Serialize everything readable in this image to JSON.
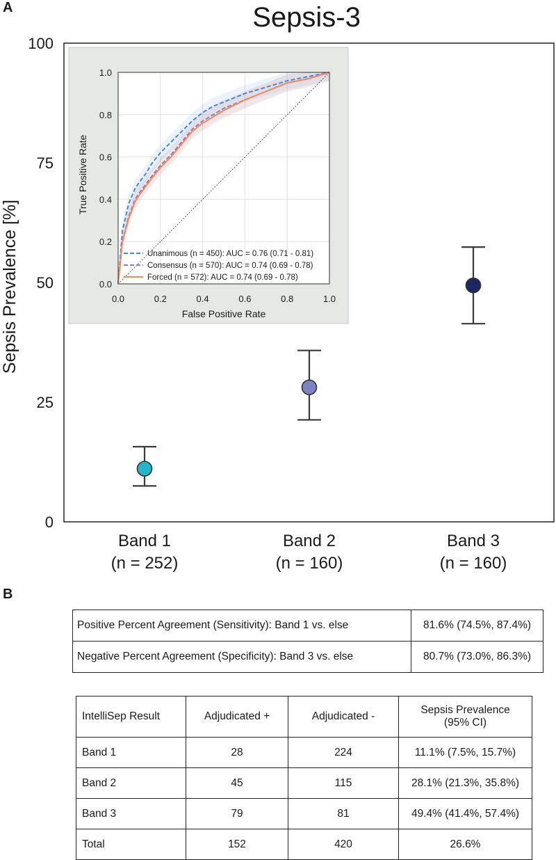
{
  "panel_labels": {
    "a": "A",
    "b": "B"
  },
  "chart_data": [
    {
      "type": "scatter",
      "title": "Sepsis-3",
      "xlabel": "",
      "ylabel": "Sepsis Prevalence [%]",
      "ylim": [
        0,
        100
      ],
      "yticks": [
        0,
        25,
        50,
        75,
        100
      ],
      "categories": [
        {
          "name": "Band 1",
          "n_label": "(n = 252)"
        },
        {
          "name": "Band 2",
          "n_label": "(n = 160)"
        },
        {
          "name": "Band 3",
          "n_label": "(n = 160)"
        }
      ],
      "values": [
        11.1,
        28.1,
        49.4
      ],
      "ci_low": [
        7.5,
        21.3,
        41.4
      ],
      "ci_high": [
        15.7,
        35.8,
        57.4
      ],
      "colors": [
        "#26b5c9",
        "#7b83c3",
        "#1b2663"
      ]
    },
    {
      "type": "line",
      "title": "",
      "xlabel": "False Positive Rate",
      "ylabel": "True Positive Rate",
      "xlim": [
        0,
        1
      ],
      "ylim": [
        0,
        1
      ],
      "xticks": [
        "0.0",
        "0.2",
        "0.4",
        "0.6",
        "0.8",
        "1.0"
      ],
      "yticks": [
        "0.0",
        "0.2",
        "0.4",
        "0.6",
        "0.8",
        "1.0"
      ],
      "grid": true,
      "legend_position": "bottom-right",
      "series": [
        {
          "name": "Unanimous (n = 450): AUC = 0.76 (0.71 - 0.81)",
          "color": "#4a86d8",
          "dash": "dashed",
          "x": [
            0,
            0.02,
            0.05,
            0.08,
            0.1,
            0.13,
            0.16,
            0.2,
            0.25,
            0.3,
            0.35,
            0.4,
            0.45,
            0.5,
            0.6,
            0.7,
            0.8,
            0.9,
            1.0
          ],
          "y": [
            0,
            0.25,
            0.38,
            0.45,
            0.48,
            0.52,
            0.57,
            0.62,
            0.67,
            0.72,
            0.77,
            0.81,
            0.84,
            0.86,
            0.9,
            0.93,
            0.96,
            0.98,
            1.0
          ]
        },
        {
          "name": "Consensus (n = 570): AUC = 0.74 (0.69 - 0.78)",
          "color": "#8a7fb8",
          "dash": "dashed",
          "x": [
            0,
            0.02,
            0.05,
            0.08,
            0.1,
            0.13,
            0.16,
            0.2,
            0.25,
            0.3,
            0.35,
            0.4,
            0.45,
            0.5,
            0.6,
            0.7,
            0.8,
            0.9,
            1.0
          ],
          "y": [
            0,
            0.2,
            0.32,
            0.4,
            0.43,
            0.47,
            0.51,
            0.56,
            0.61,
            0.67,
            0.73,
            0.77,
            0.8,
            0.83,
            0.87,
            0.91,
            0.95,
            0.97,
            1.0
          ]
        },
        {
          "name": "Forced (n = 572): AUC = 0.74 (0.69 - 0.78)",
          "color": "#f08a62",
          "dash": "solid",
          "x": [
            0,
            0.02,
            0.05,
            0.08,
            0.1,
            0.13,
            0.16,
            0.2,
            0.25,
            0.3,
            0.35,
            0.4,
            0.45,
            0.5,
            0.6,
            0.7,
            0.8,
            0.9,
            1.0
          ],
          "y": [
            0,
            0.2,
            0.31,
            0.39,
            0.42,
            0.46,
            0.5,
            0.55,
            0.6,
            0.66,
            0.72,
            0.76,
            0.79,
            0.82,
            0.87,
            0.91,
            0.95,
            0.97,
            1.0
          ]
        }
      ]
    }
  ],
  "agreement_table": [
    {
      "label": "Positive Percent Agreement (Sensitivity): Band 1 vs. else",
      "value": "81.6% (74.5%, 87.4%)"
    },
    {
      "label": "Negative Percent Agreement (Specificity): Band 3 vs. else",
      "value": "80.7% (73.0%, 86.3%)"
    }
  ],
  "results_table": {
    "headers": [
      "IntelliSep Result",
      "Adjudicated +",
      "Adjudicated -",
      "Sepsis Prevalence",
      "(95% CI)"
    ],
    "rows": [
      [
        "Band 1",
        "28",
        "224",
        "11.1% (7.5%, 15.7%)"
      ],
      [
        "Band 2",
        "45",
        "115",
        "28.1% (21.3%, 35.8%)"
      ],
      [
        "Band 3",
        "79",
        "81",
        "49.4% (41.4%, 57.4%)"
      ],
      [
        "Total",
        "152",
        "420",
        "26.6%"
      ]
    ]
  }
}
